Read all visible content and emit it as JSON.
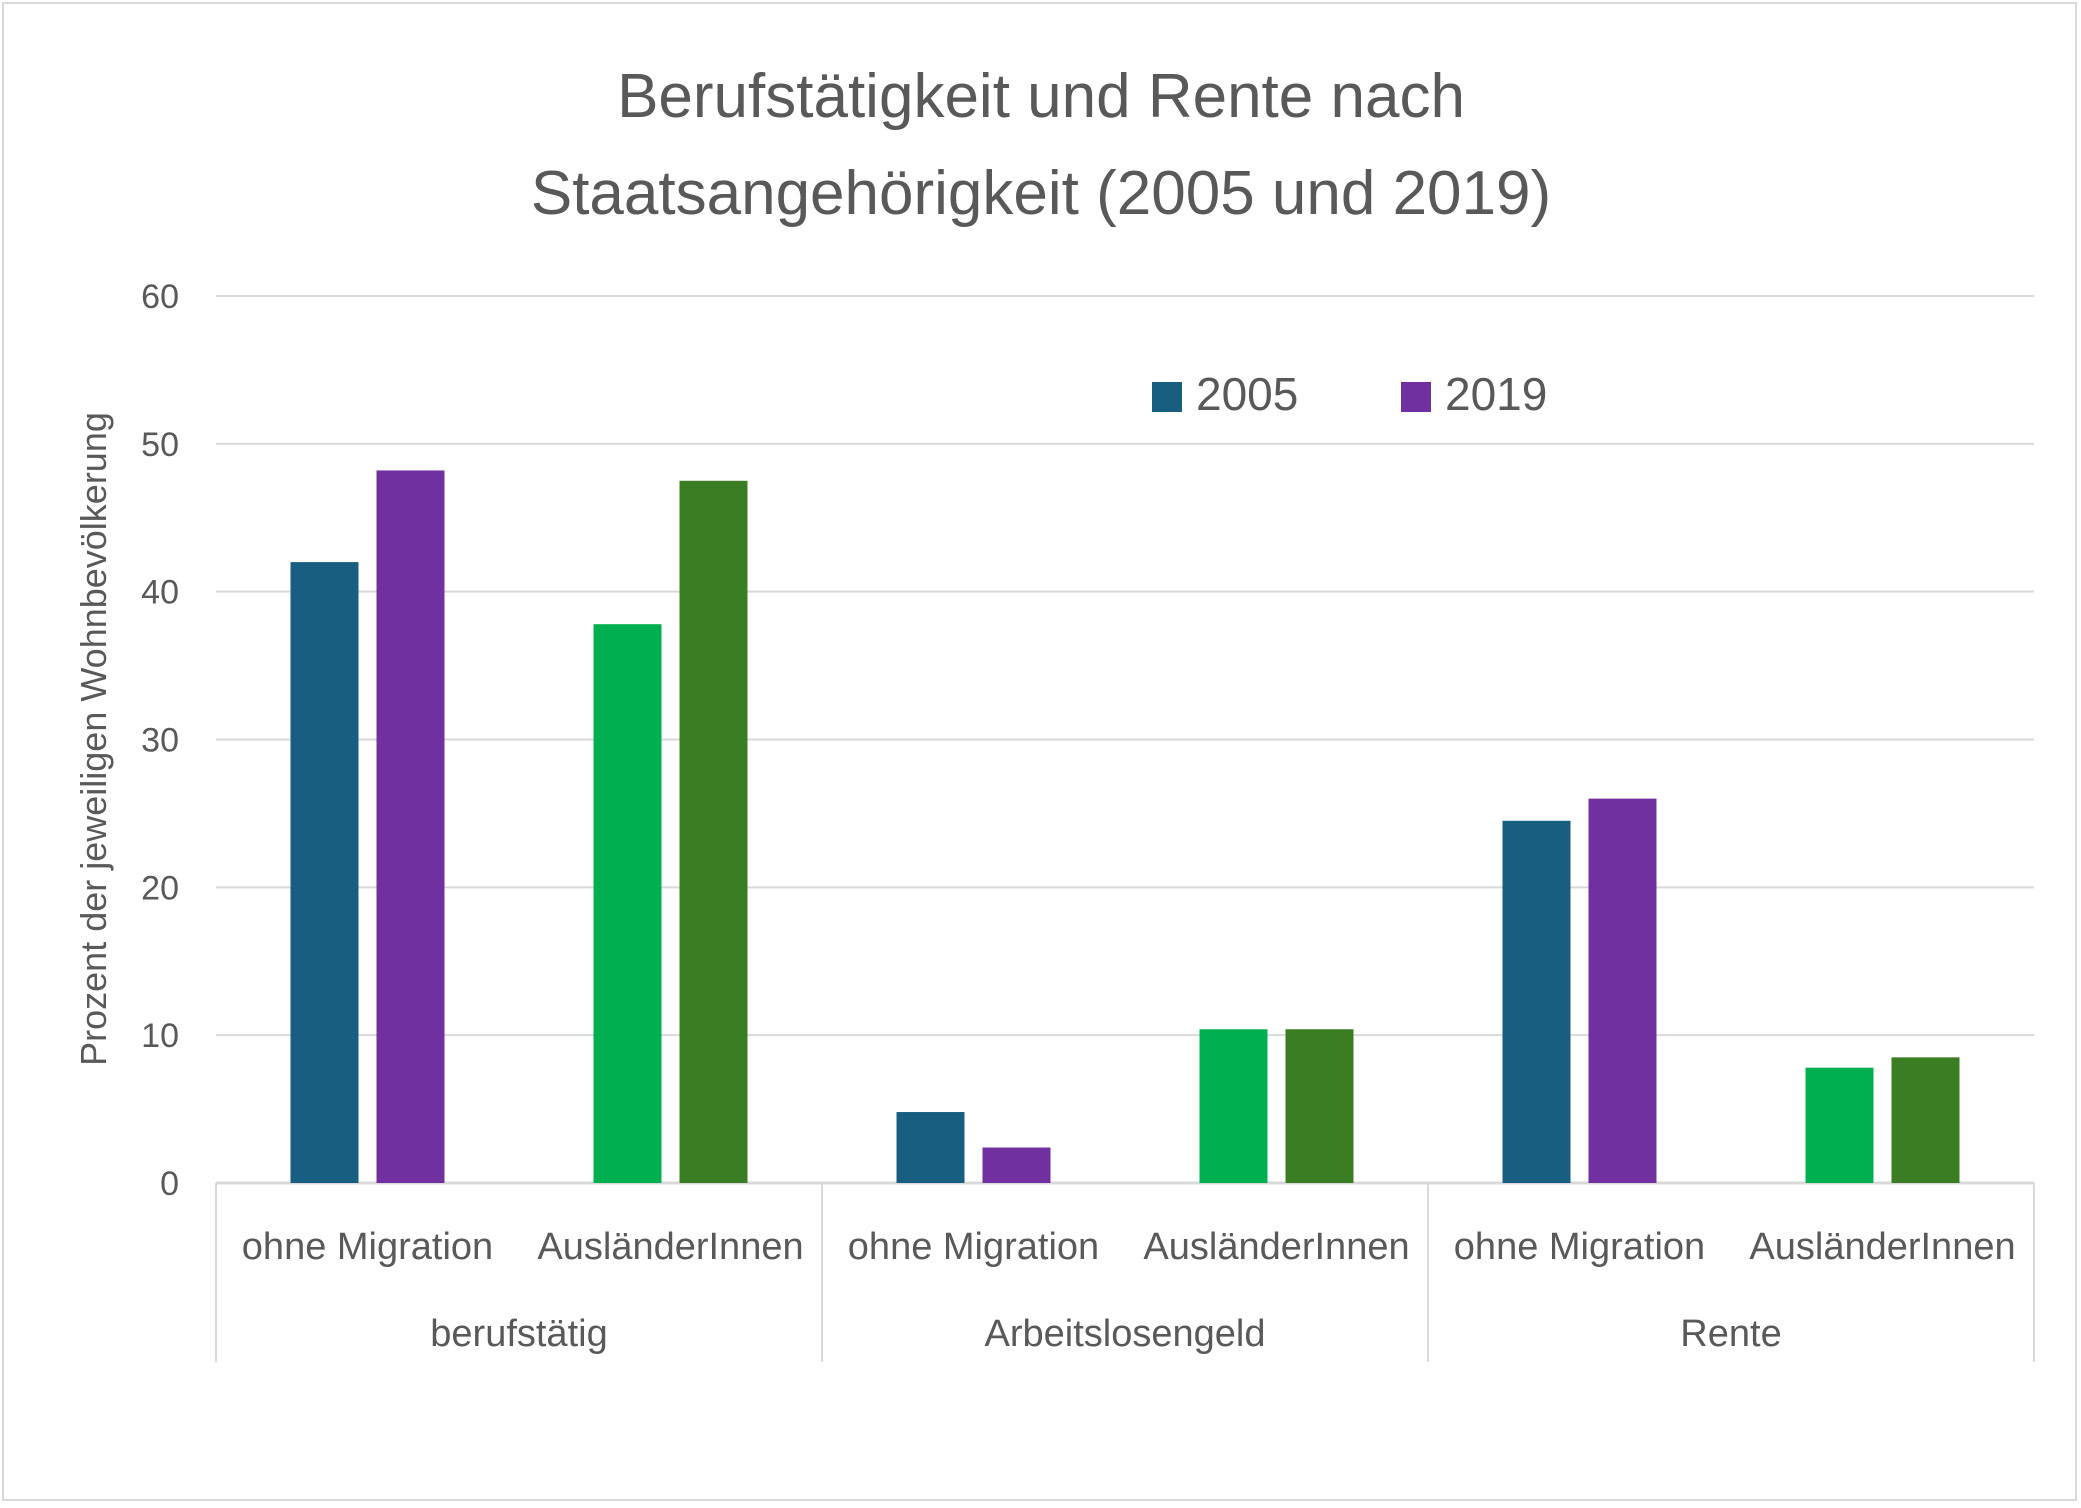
{
  "chart_data": {
    "type": "bar",
    "title": "Berufstätigkeit und Rente nach Staatsangehörigkeit (2005 und 2019)",
    "title_lines": [
      "Berufstätigkeit und Rente nach",
      "Staatsangehörigkeit (2005 und 2019)"
    ],
    "xlabel": "",
    "ylabel": "Prozent der jeweiligen Wohnbevölkerung",
    "ylim": [
      0,
      60
    ],
    "yticks": [
      0,
      10,
      20,
      30,
      40,
      50,
      60
    ],
    "grid": true,
    "legend": {
      "placement": "top-center",
      "entries": [
        {
          "label": "2005",
          "color": "#175e80"
        },
        {
          "label": "2019",
          "color": "#7030a0"
        }
      ]
    },
    "groups": [
      "berufstätig",
      "Arbeitslosengeld",
      "Rente"
    ],
    "subcategories": [
      "ohne Migration",
      "AusländerInnen"
    ],
    "series": [
      {
        "name": "2005",
        "subcategory": "ohne Migration",
        "color": "#175e80",
        "values": [
          42.0,
          4.8,
          24.5
        ]
      },
      {
        "name": "2019",
        "subcategory": "ohne Migration",
        "color": "#7030a0",
        "values": [
          48.2,
          2.4,
          26.0
        ]
      },
      {
        "name": "2005",
        "subcategory": "AusländerInnen",
        "color": "#00b050",
        "values": [
          37.8,
          10.4,
          7.8
        ]
      },
      {
        "name": "2019",
        "subcategory": "AusländerInnen",
        "color": "#3b7d23",
        "values": [
          47.5,
          10.4,
          8.5
        ]
      }
    ]
  }
}
